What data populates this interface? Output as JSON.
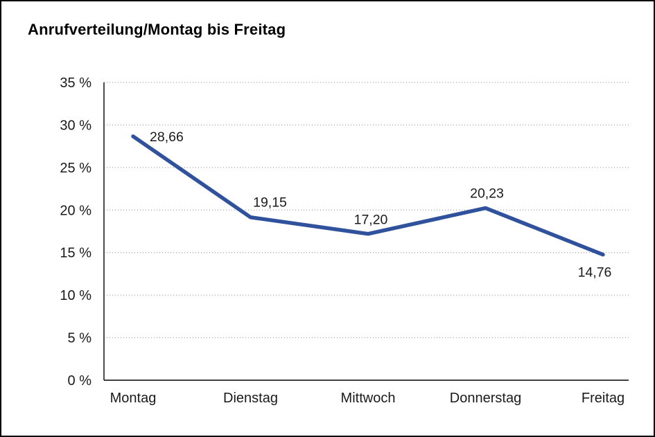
{
  "chart_data": {
    "type": "line",
    "title": "Anrufverteilung/Montag bis Freitag",
    "categories": [
      "Montag",
      "Dienstag",
      "Mittwoch",
      "Donnerstag",
      "Freitag"
    ],
    "values": [
      28.66,
      19.15,
      17.2,
      20.23,
      14.76
    ],
    "value_labels": [
      "28,66",
      "19,15",
      "17,20",
      "20,23",
      "14,76"
    ],
    "ylim": [
      0,
      35
    ],
    "ytick_step": 5,
    "ytick_suffix": " %",
    "ytick_labels": [
      "0 %",
      "5 %",
      "10 %",
      "15 %",
      "20 %",
      "25 %",
      "30 %",
      "35 %"
    ],
    "grid": "dotted horizontal",
    "legend": "none",
    "xlabel": "",
    "ylabel": "",
    "line_color": "#30519c",
    "colors": {
      "grid": "#8c8c8c",
      "axis": "#000000",
      "text": "#1a1a1a",
      "background": "#ffffff"
    }
  }
}
